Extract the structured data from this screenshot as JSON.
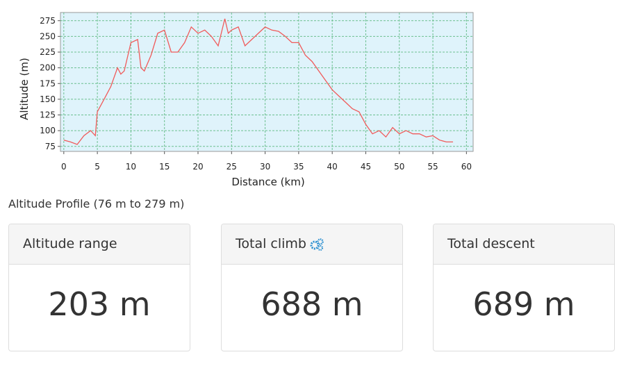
{
  "chart_data": {
    "type": "line",
    "x_label": "Distance (km)",
    "y_label": "Altitude (m)",
    "x": [
      0,
      1,
      2,
      3,
      4,
      4.7,
      5,
      6,
      7,
      8,
      8.5,
      9,
      10,
      11,
      11.5,
      12,
      13,
      14,
      15,
      16,
      17,
      18,
      19,
      20,
      21,
      22,
      23,
      24,
      24.5,
      25,
      26,
      27,
      28,
      29,
      30,
      31,
      32,
      33,
      34,
      35,
      36,
      37,
      38,
      39,
      40,
      41,
      42,
      43,
      44,
      45,
      46,
      47,
      48,
      49,
      50,
      51,
      52,
      53,
      54,
      55,
      56,
      57,
      58
    ],
    "series": [
      {
        "name": "Altitude",
        "color": "#f05a5a",
        "values": [
          85,
          82,
          78,
          92,
          100,
          92,
          130,
          150,
          170,
          200,
          190,
          195,
          240,
          245,
          200,
          195,
          220,
          255,
          260,
          225,
          225,
          240,
          265,
          255,
          260,
          250,
          235,
          278,
          255,
          260,
          265,
          235,
          245,
          255,
          265,
          260,
          258,
          250,
          240,
          240,
          220,
          210,
          195,
          180,
          165,
          155,
          145,
          135,
          130,
          110,
          95,
          100,
          90,
          105,
          95,
          100,
          95,
          95,
          90,
          92,
          85,
          82,
          82
        ]
      }
    ],
    "xlim": [
      -0.5,
      61
    ],
    "ylim": [
      67,
      288
    ],
    "xticks": [
      0,
      5,
      10,
      15,
      20,
      25,
      30,
      35,
      40,
      45,
      50,
      55,
      60
    ],
    "yticks": [
      75,
      100,
      125,
      150,
      175,
      200,
      225,
      250,
      275
    ],
    "grid": true,
    "background": "#dff3fb",
    "grid_color": "#6cc090"
  },
  "caption": "Altitude Profile (76 m to 279 m)",
  "cards": [
    {
      "title": "Altitude range",
      "value": "203 m"
    },
    {
      "title": "Total climb",
      "value": "688 m"
    },
    {
      "title": "Total descent",
      "value": "689 m"
    }
  ]
}
